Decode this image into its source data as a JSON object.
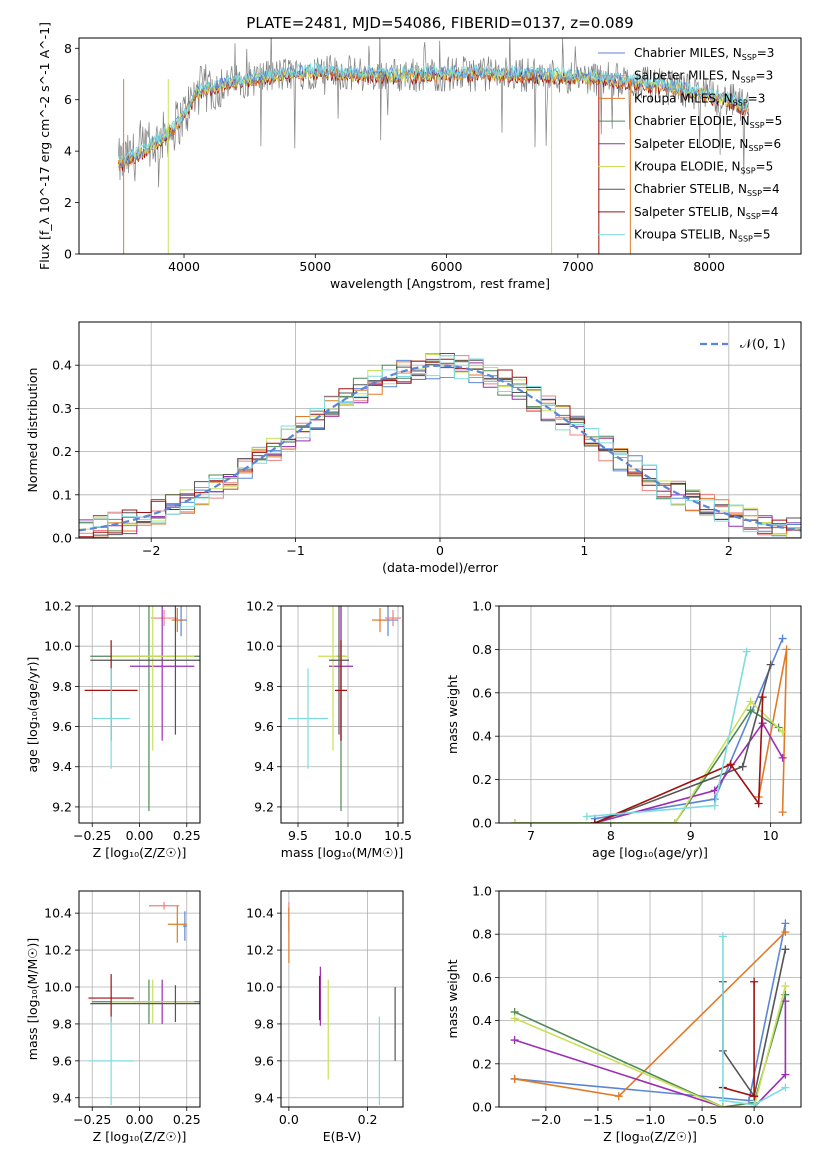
{
  "figure": {
    "title": "PLATE=2481, MJD=54086, FIBERID=0137, z=0.089"
  },
  "colors": {
    "Chabrier MILES": "#5b86d6",
    "Salpeter MILES": "#f08080",
    "Kroupa MILES": "#e07b28",
    "Chabrier ELODIE": "#4f8a58",
    "Salpeter ELODIE": "#9c2db3",
    "Kroupa ELODIE": "#c9e05a",
    "Chabrier STELIB": "#555555",
    "Salpeter STELIB": "#a01010",
    "Kroupa STELIB": "#7fdcde",
    "data": "#808080",
    "normal": "#5b86d6"
  },
  "chart_data": [
    {
      "id": "spectrum",
      "type": "line",
      "xlabel": "wavelength [Angstrom, rest frame]",
      "ylabel": "Flux [f_λ 10^-17 erg cm^-2 s^-1 A^-1]",
      "xlim": [
        3200,
        8700
      ],
      "ylim": [
        0,
        8.4
      ],
      "xticks": [
        4000,
        5000,
        6000,
        7000,
        8000
      ],
      "yticks": [
        0,
        2,
        4,
        6,
        8
      ],
      "legend_position": "right",
      "legend": [
        {
          "model": "Chabrier MILES",
          "nssp": "3"
        },
        {
          "model": "Salpeter MILES",
          "nssp": "3"
        },
        {
          "model": "Kroupa MILES",
          "nssp": "3"
        },
        {
          "model": "Chabrier ELODIE",
          "nssp": "5"
        },
        {
          "model": "Salpeter ELODIE",
          "nssp": "6"
        },
        {
          "model": "Kroupa ELODIE",
          "nssp": "5"
        },
        {
          "model": "Chabrier STELIB",
          "nssp": "4"
        },
        {
          "model": "Salpeter STELIB",
          "nssp": "4"
        },
        {
          "model": "Kroupa STELIB",
          "nssp": "5"
        }
      ],
      "continuum": {
        "x": [
          3500,
          3700,
          3900,
          4000,
          4100,
          4300,
          4500,
          4800,
          5000,
          5300,
          5600,
          6000,
          6500,
          7000,
          7400,
          7800,
          8200,
          8300
        ],
        "y": [
          3.5,
          4.0,
          4.8,
          5.4,
          6.3,
          6.6,
          6.8,
          7.0,
          7.1,
          7.0,
          6.95,
          7.0,
          7.0,
          6.9,
          6.7,
          6.4,
          5.9,
          5.6
        ]
      }
    },
    {
      "id": "residuals",
      "type": "bar",
      "xlabel": "(data-model)/error",
      "ylabel": "Normed distribution",
      "xlim": [
        -2.5,
        2.5
      ],
      "ylim": [
        0,
        0.5
      ],
      "xticks": [
        -2,
        -1,
        0,
        1,
        2
      ],
      "yticks": [
        0.0,
        0.1,
        0.2,
        0.3,
        0.4
      ],
      "legend_label": "𝒩(0, 1)",
      "legend_position": "top-right",
      "bin_width": 0.1
    },
    {
      "id": "age-vs-Z",
      "type": "scatter",
      "xlabel": "Z [log₁₀(Z/Z☉)]",
      "ylabel": "age  [log₁₀(age/yr)]",
      "xlim": [
        -0.32,
        0.32
      ],
      "ylim": [
        9.12,
        10.2
      ],
      "xticks": [
        -0.25,
        0.0,
        0.25
      ],
      "yticks": [
        9.2,
        9.4,
        9.6,
        9.8,
        10.0,
        10.2
      ],
      "points": [
        {
          "model": "Chabrier MILES",
          "x": 0.22,
          "y": 10.13,
          "xerr": 0.03,
          "yerr": 0.08
        },
        {
          "model": "Salpeter MILES",
          "x": 0.13,
          "y": 10.14,
          "xerr": 0.07,
          "yerr": 0.04
        },
        {
          "model": "Kroupa MILES",
          "x": 0.2,
          "y": 10.13,
          "xerr": 0.03,
          "yerr": 0.06
        },
        {
          "model": "Chabrier ELODIE",
          "x": 0.05,
          "y": 9.95,
          "xerr": 0.31,
          "yerr": 0.77
        },
        {
          "model": "Salpeter ELODIE",
          "x": 0.12,
          "y": 9.9,
          "xerr": 0.17,
          "yerr": 0.37
        },
        {
          "model": "Kroupa ELODIE",
          "x": 0.07,
          "y": 9.95,
          "xerr": 0.22,
          "yerr": 0.47
        },
        {
          "model": "Chabrier STELIB",
          "x": 0.19,
          "y": 9.93,
          "xerr": 0.45,
          "yerr": 0.37
        },
        {
          "model": "Salpeter STELIB",
          "x": -0.15,
          "y": 9.78,
          "xerr": 0.14,
          "yerr": 0.25
        },
        {
          "model": "Kroupa STELIB",
          "x": -0.15,
          "y": 9.64,
          "xerr": 0.1,
          "yerr": 0.25
        }
      ]
    },
    {
      "id": "age-vs-mass",
      "type": "scatter",
      "xlabel": "mass [log₁₀(M/M☉)]",
      "ylabel": "",
      "xlim": [
        9.33,
        10.55
      ],
      "ylim": [
        9.12,
        10.2
      ],
      "xticks": [
        9.5,
        10.0,
        10.5
      ],
      "yticks": [
        9.2,
        9.4,
        9.6,
        9.8,
        10.0,
        10.2
      ],
      "points": [
        {
          "model": "Chabrier MILES",
          "x": 10.4,
          "y": 10.13,
          "xerr": 0.1,
          "yerr": 0.08
        },
        {
          "model": "Salpeter MILES",
          "x": 10.45,
          "y": 10.14,
          "xerr": 0.08,
          "yerr": 0.04
        },
        {
          "model": "Kroupa MILES",
          "x": 10.32,
          "y": 10.13,
          "xerr": 0.08,
          "yerr": 0.06
        },
        {
          "model": "Chabrier ELODIE",
          "x": 9.93,
          "y": 9.95,
          "xerr": 0.05,
          "yerr": 0.77
        },
        {
          "model": "Salpeter ELODIE",
          "x": 9.93,
          "y": 9.9,
          "xerr": 0.12,
          "yerr": 0.37
        },
        {
          "model": "Kroupa ELODIE",
          "x": 9.85,
          "y": 9.95,
          "xerr": 0.15,
          "yerr": 0.47
        },
        {
          "model": "Chabrier STELIB",
          "x": 9.91,
          "y": 9.93,
          "xerr": 0.1,
          "yerr": 0.37
        },
        {
          "model": "Salpeter STELIB",
          "x": 9.93,
          "y": 9.78,
          "xerr": 0.06,
          "yerr": 0.25
        },
        {
          "model": "Kroupa STELIB",
          "x": 9.6,
          "y": 9.64,
          "xerr": 0.2,
          "yerr": 0.25
        }
      ]
    },
    {
      "id": "weight-vs-age",
      "type": "line",
      "xlabel": "age  [log₁₀(age/yr)]",
      "ylabel": "mass weight",
      "xlim": [
        6.6,
        10.38
      ],
      "ylim": [
        0,
        1.0
      ],
      "xticks": [
        7,
        8,
        9,
        10
      ],
      "yticks": [
        0.0,
        0.2,
        0.4,
        0.6,
        0.8,
        1.0
      ],
      "series": [
        {
          "model": "Chabrier MILES",
          "x": [
            7.8,
            9.3,
            10.15
          ],
          "y": [
            0.02,
            0.11,
            0.85
          ]
        },
        {
          "model": "Kroupa MILES",
          "x": [
            9.85,
            10.2,
            10.15
          ],
          "y": [
            0.12,
            0.8,
            0.05
          ]
        },
        {
          "model": "Chabrier ELODIE",
          "x": [
            6.8,
            7.8,
            8.8,
            9.75,
            10.1
          ],
          "y": [
            0.0,
            0.0,
            0.0,
            0.52,
            0.44
          ]
        },
        {
          "model": "Salpeter ELODIE",
          "x": [
            7.8,
            9.3,
            9.9,
            10.15
          ],
          "y": [
            0.0,
            0.15,
            0.46,
            0.3
          ]
        },
        {
          "model": "Kroupa ELODIE",
          "x": [
            6.8,
            7.8,
            8.8,
            9.75,
            10.15
          ],
          "y": [
            0.0,
            0.0,
            0.0,
            0.56,
            0.42
          ]
        },
        {
          "model": "Chabrier STELIB",
          "x": [
            7.8,
            9.65,
            10.0
          ],
          "y": [
            0.0,
            0.26,
            0.73
          ]
        },
        {
          "model": "Salpeter STELIB",
          "x": [
            7.8,
            9.5,
            9.85,
            9.9
          ],
          "y": [
            0.0,
            0.27,
            0.09,
            0.58
          ]
        },
        {
          "model": "Kroupa STELIB",
          "x": [
            7.7,
            9.3,
            9.7
          ],
          "y": [
            0.03,
            0.08,
            0.79
          ]
        }
      ]
    },
    {
      "id": "mass-vs-Z",
      "type": "scatter",
      "xlabel": "Z [log₁₀(Z/Z☉)]",
      "ylabel": "mass [log₁₀(M/M☉)]",
      "xlim": [
        -0.32,
        0.32
      ],
      "ylim": [
        9.35,
        10.52
      ],
      "xticks": [
        -0.25,
        0.0,
        0.25
      ],
      "yticks": [
        9.4,
        9.6,
        9.8,
        10.0,
        10.2,
        10.4
      ],
      "points": [
        {
          "model": "Chabrier MILES",
          "x": 0.24,
          "y": 10.33,
          "xerr": 0.01,
          "yerr": 0.08
        },
        {
          "model": "Salpeter MILES",
          "x": 0.13,
          "y": 10.44,
          "xerr": 0.08,
          "yerr": 0.02
        },
        {
          "model": "Kroupa MILES",
          "x": 0.2,
          "y": 10.34,
          "xerr": 0.05,
          "yerr": 0.1
        },
        {
          "model": "Chabrier ELODIE",
          "x": 0.05,
          "y": 9.92,
          "xerr": 0.3,
          "yerr": 0.12
        },
        {
          "model": "Salpeter ELODIE",
          "x": 0.12,
          "y": 9.92,
          "xerr": 0.15,
          "yerr": 0.12
        },
        {
          "model": "Kroupa ELODIE",
          "x": 0.07,
          "y": 9.92,
          "xerr": 0.22,
          "yerr": 0.12
        },
        {
          "model": "Chabrier STELIB",
          "x": 0.19,
          "y": 9.91,
          "xerr": 0.45,
          "yerr": 0.1
        },
        {
          "model": "Salpeter STELIB",
          "x": -0.15,
          "y": 9.94,
          "xerr": 0.12,
          "yerr": 0.13
        },
        {
          "model": "Kroupa STELIB",
          "x": -0.15,
          "y": 9.6,
          "xerr": 0.12,
          "yerr": 0.24
        }
      ]
    },
    {
      "id": "mass-vs-EBV",
      "type": "scatter",
      "xlabel": "E(B-V)",
      "ylabel": "",
      "xlim": [
        -0.02,
        0.29
      ],
      "ylim": [
        9.35,
        10.52
      ],
      "xticks": [
        0.0,
        0.2
      ],
      "yticks": [
        9.4,
        9.6,
        9.8,
        10.0,
        10.2,
        10.4
      ],
      "points": [
        {
          "model": "Salpeter MILES",
          "x": 0.0,
          "y": 10.38,
          "xerr": 0.0,
          "yerr": 0.08
        },
        {
          "model": "Kroupa MILES",
          "x": 0.0,
          "y": 10.28,
          "xerr": 0.0,
          "yerr": 0.15
        },
        {
          "model": "Salpeter ELODIE",
          "x": 0.08,
          "y": 9.95,
          "xerr": 0.0,
          "yerr": 0.16
        },
        {
          "model": "Kroupa ELODIE",
          "x": 0.1,
          "y": 9.77,
          "xerr": 0.0,
          "yerr": 0.27
        },
        {
          "model": "Chabrier STELIB",
          "x": 0.27,
          "y": 9.8,
          "xerr": 0.0,
          "yerr": 0.2
        },
        {
          "model": "Salpeter STELIB",
          "x": 0.078,
          "y": 9.94,
          "xerr": 0.0,
          "yerr": 0.12
        },
        {
          "model": "Kroupa STELIB",
          "x": 0.23,
          "y": 9.6,
          "xerr": 0.0,
          "yerr": 0.24
        }
      ]
    },
    {
      "id": "weight-vs-Z",
      "type": "line",
      "xlabel": "Z [log₁₀(Z/Z☉)]",
      "ylabel": "mass weight",
      "xlim": [
        -2.45,
        0.45
      ],
      "ylim": [
        0,
        1.0
      ],
      "xticks": [
        -2.0,
        -1.5,
        -1.0,
        -0.5,
        0.0
      ],
      "yticks": [
        0.0,
        0.2,
        0.4,
        0.6,
        0.8,
        1.0
      ],
      "series": [
        {
          "model": "Chabrier MILES",
          "x": [
            -2.3,
            -0.05,
            0.3
          ],
          "y": [
            0.13,
            0.03,
            0.85
          ]
        },
        {
          "model": "Kroupa MILES",
          "x": [
            -2.3,
            -1.3,
            0.3
          ],
          "y": [
            0.13,
            0.05,
            0.81
          ]
        },
        {
          "model": "Chabrier ELODIE",
          "x": [
            -2.3,
            -0.3,
            -0.3,
            0.0,
            0.3
          ],
          "y": [
            0.44,
            0.0,
            0.0,
            0.02,
            0.52
          ]
        },
        {
          "model": "Salpeter ELODIE",
          "x": [
            -2.3,
            -0.3,
            0.0,
            0.3,
            0.3
          ],
          "y": [
            0.31,
            0.0,
            0.0,
            0.15,
            0.49
          ]
        },
        {
          "model": "Kroupa ELODIE",
          "x": [
            -2.3,
            -0.3,
            0.0,
            0.3
          ],
          "y": [
            0.41,
            0.0,
            0.0,
            0.56
          ]
        },
        {
          "model": "Chabrier STELIB",
          "x": [
            -0.3,
            -0.3,
            0.0,
            0.3
          ],
          "y": [
            0.58,
            0.26,
            0.05,
            0.73
          ]
        },
        {
          "model": "Salpeter STELIB",
          "x": [
            -0.3,
            0.0,
            0.0
          ],
          "y": [
            0.09,
            0.05,
            0.58
          ]
        },
        {
          "model": "Kroupa STELIB",
          "x": [
            -0.3,
            -0.3,
            0.0,
            0.3
          ],
          "y": [
            0.79,
            0.03,
            0.01,
            0.09
          ]
        }
      ]
    }
  ]
}
